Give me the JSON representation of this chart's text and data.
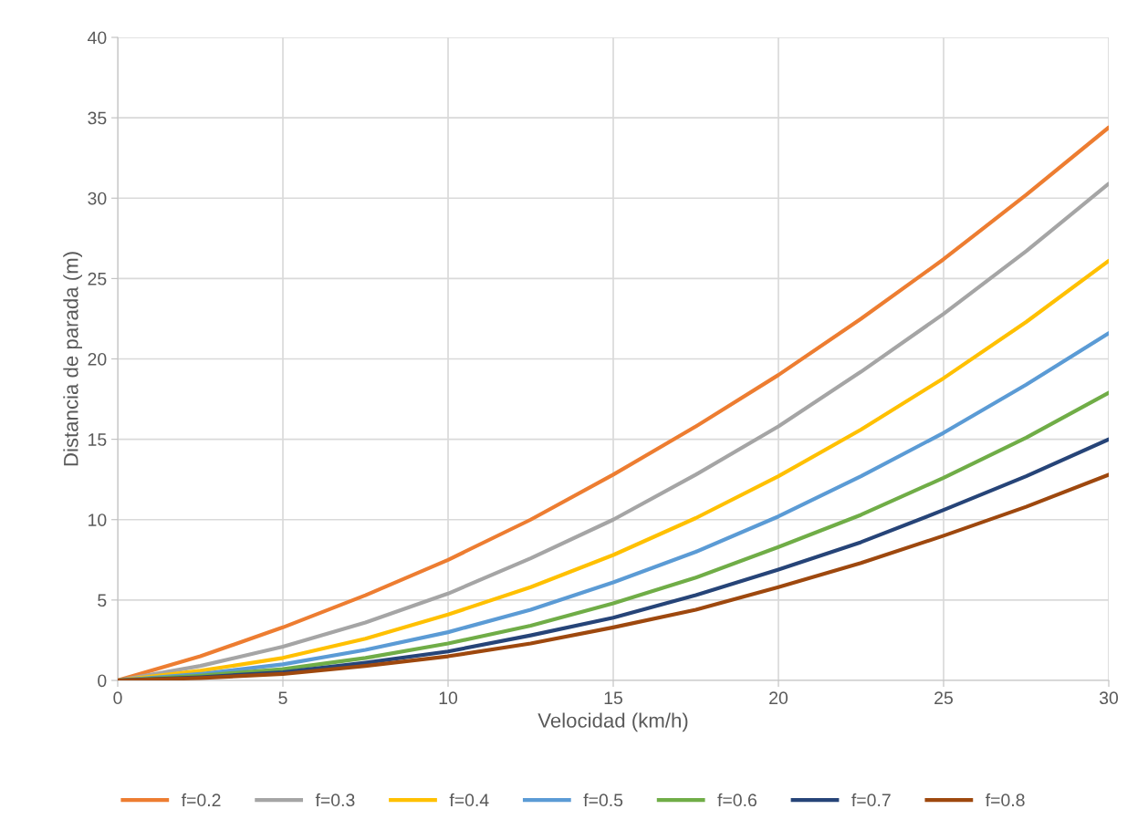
{
  "chart_data": {
    "type": "line",
    "xlabel": "Velocidad (km/h)",
    "ylabel": "Distancia de parada (m)",
    "x": [
      0,
      2.5,
      5,
      7.5,
      10,
      12.5,
      15,
      17.5,
      20,
      22.5,
      25,
      27.5,
      30
    ],
    "series": [
      {
        "name": "f=0.2",
        "color": "#ed7d31",
        "values": [
          0,
          1.5,
          3.3,
          5.3,
          7.5,
          10.0,
          12.8,
          15.8,
          19.0,
          22.5,
          26.2,
          30.2,
          34.4
        ]
      },
      {
        "name": "f=0.3",
        "color": "#a5a5a5",
        "values": [
          0,
          0.9,
          2.1,
          3.6,
          5.4,
          7.6,
          10.0,
          12.8,
          15.8,
          19.2,
          22.8,
          26.7,
          30.9
        ]
      },
      {
        "name": "f=0.4",
        "color": "#ffc000",
        "values": [
          0,
          0.6,
          1.4,
          2.6,
          4.1,
          5.8,
          7.8,
          10.1,
          12.7,
          15.6,
          18.8,
          22.3,
          26.1
        ]
      },
      {
        "name": "f=0.5",
        "color": "#5b9bd5",
        "values": [
          0,
          0.4,
          1.0,
          1.9,
          3.0,
          4.4,
          6.1,
          8.0,
          10.2,
          12.7,
          15.4,
          18.4,
          21.6
        ]
      },
      {
        "name": "f=0.6",
        "color": "#70ad47",
        "values": [
          0,
          0.3,
          0.7,
          1.4,
          2.3,
          3.4,
          4.8,
          6.4,
          8.3,
          10.3,
          12.6,
          15.1,
          17.9
        ]
      },
      {
        "name": "f=0.7",
        "color": "#264478",
        "values": [
          0,
          0.2,
          0.5,
          1.1,
          1.8,
          2.8,
          3.9,
          5.3,
          6.9,
          8.6,
          10.6,
          12.7,
          15.0
        ]
      },
      {
        "name": "f=0.8",
        "color": "#9e480e",
        "values": [
          0,
          0.15,
          0.4,
          0.9,
          1.5,
          2.3,
          3.3,
          4.4,
          5.8,
          7.3,
          9.0,
          10.8,
          12.8
        ]
      }
    ],
    "xlim": [
      0,
      30
    ],
    "xticks": [
      0,
      5,
      10,
      15,
      20,
      25,
      30
    ],
    "ylim": [
      0,
      40
    ],
    "yticks": [
      0,
      5,
      10,
      15,
      20,
      25,
      30,
      35,
      40
    ],
    "grid": true,
    "legend": "bottom",
    "marker": "none",
    "line_style": "solid"
  }
}
